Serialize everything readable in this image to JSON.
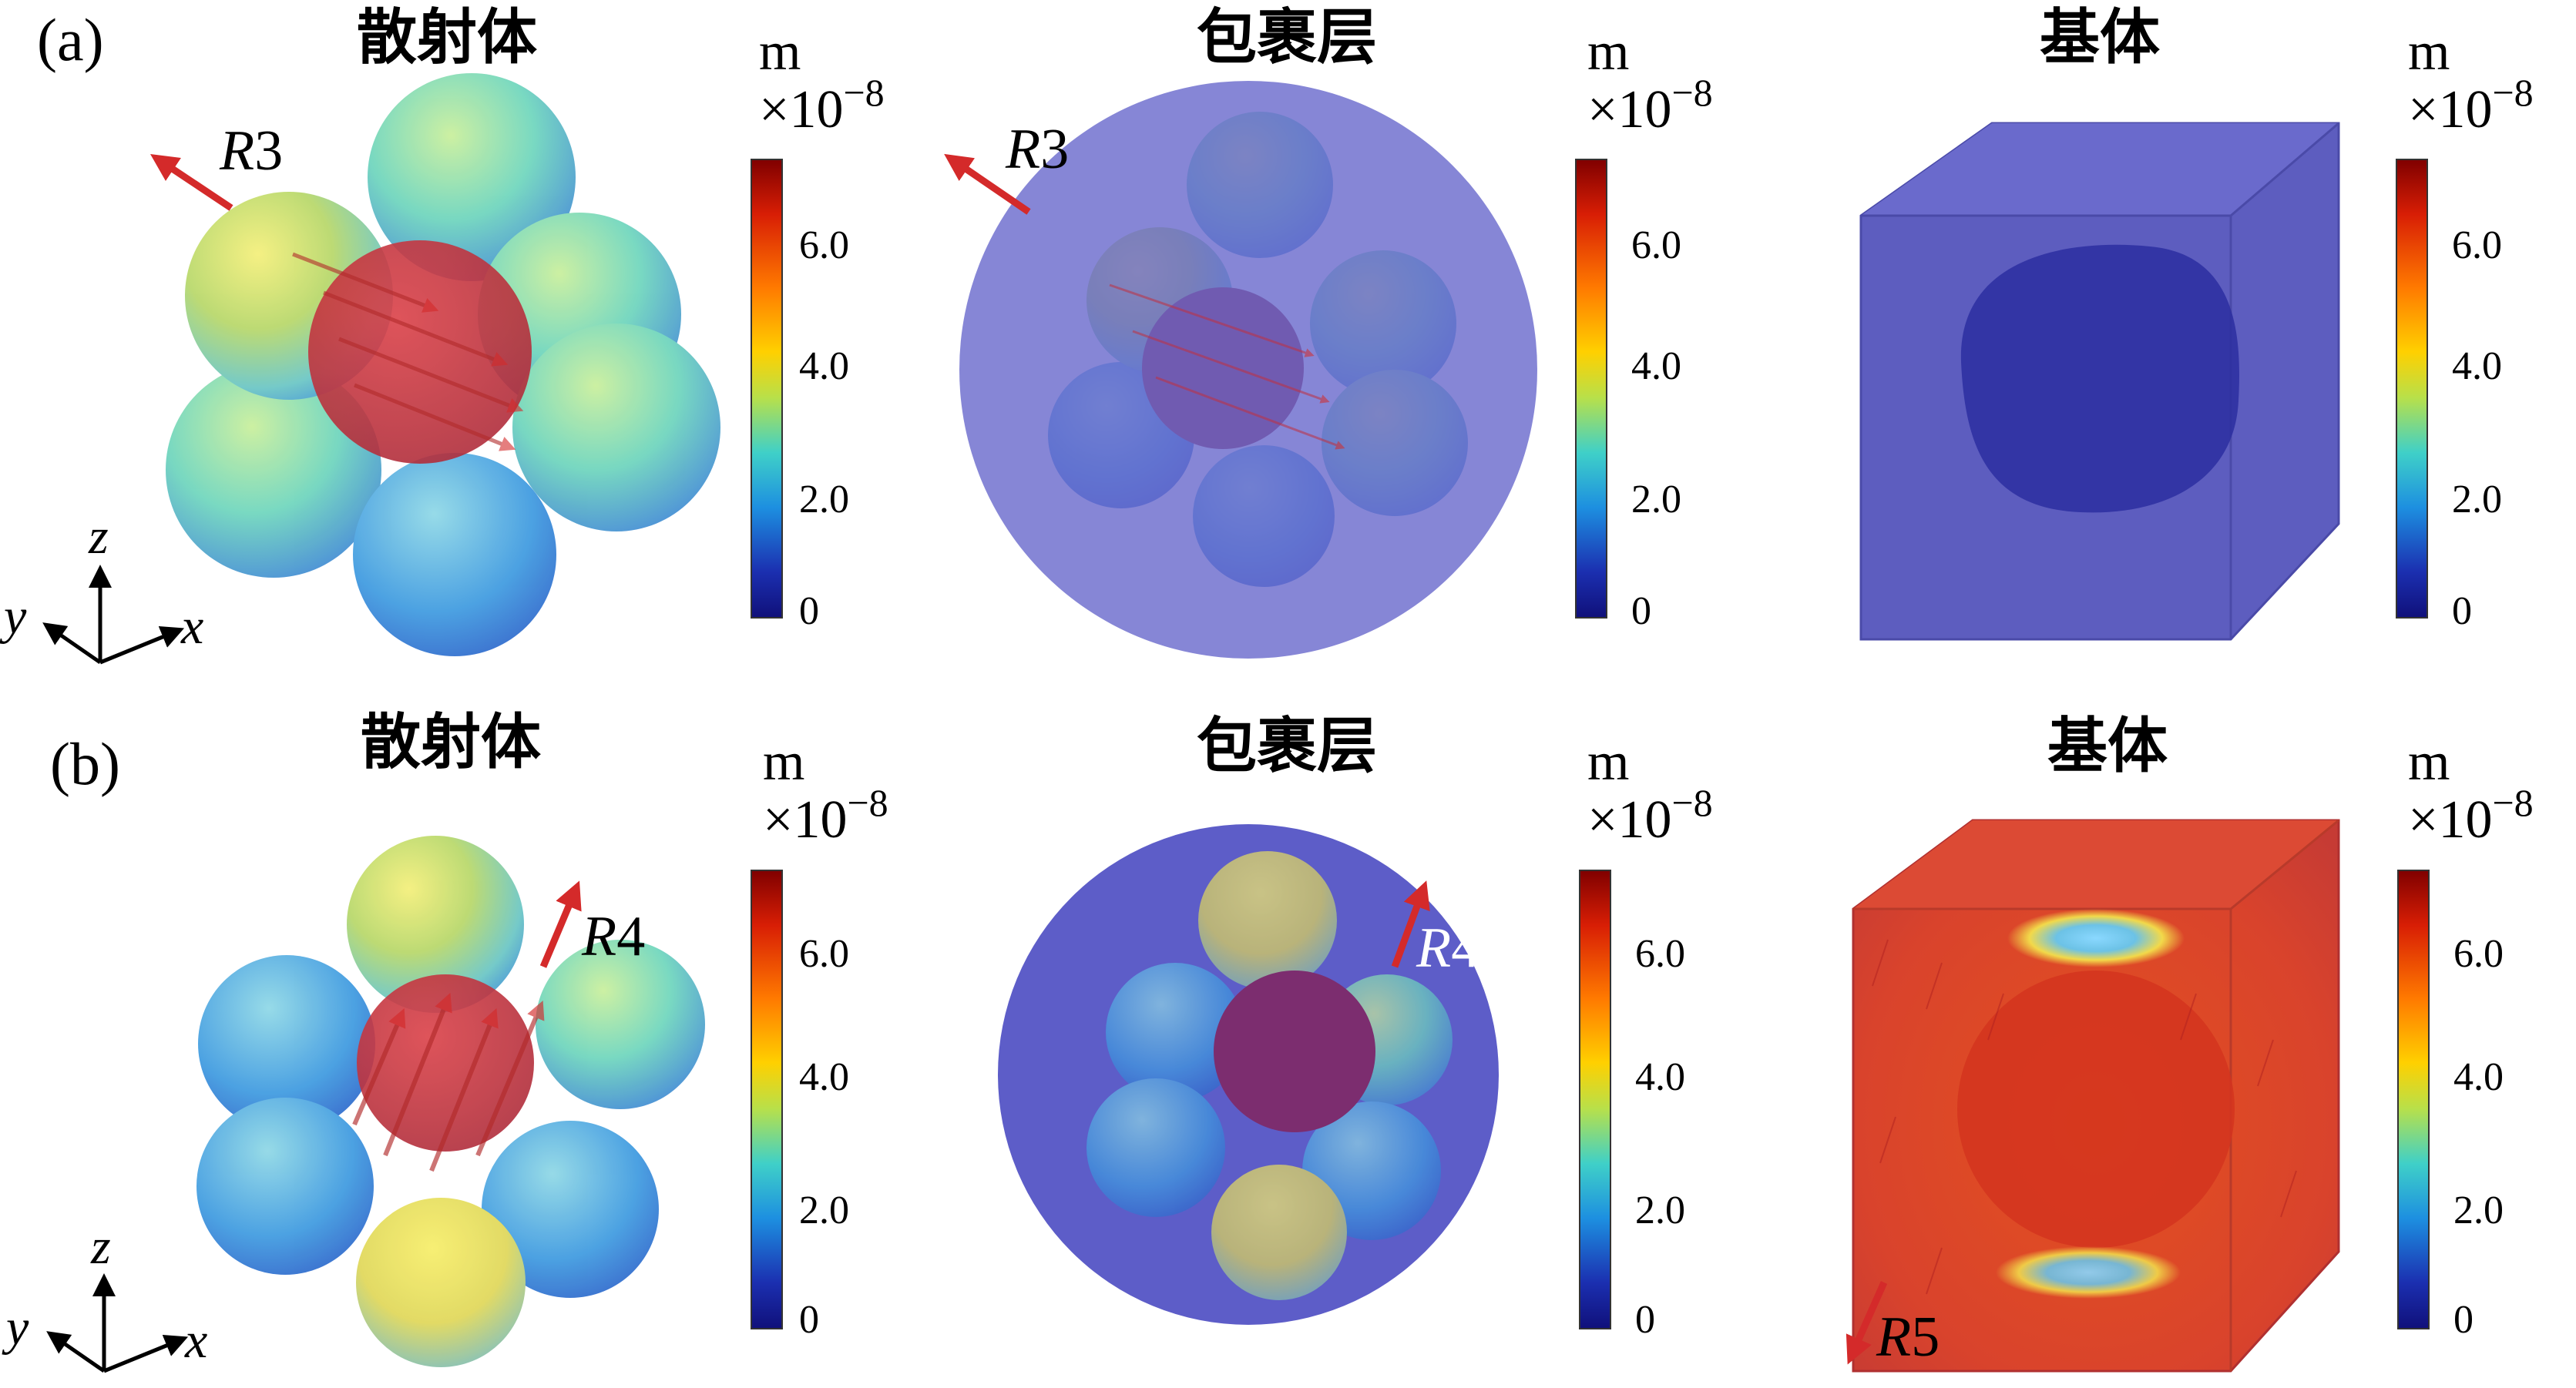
{
  "rows": [
    {
      "label": "(a)",
      "panels": [
        {
          "title": "散射体",
          "arrow_label": {
            "letter": "R",
            "num": "3"
          }
        },
        {
          "title": "包裹层",
          "arrow_label": {
            "letter": "R",
            "num": "3"
          }
        },
        {
          "title": "基体",
          "arrow_label": null
        }
      ]
    },
    {
      "label": "(b)",
      "panels": [
        {
          "title": "散射体",
          "arrow_label": {
            "letter": "R",
            "num": "4"
          }
        },
        {
          "title": "包裹层",
          "arrow_label": {
            "letter": "R",
            "num": "4"
          }
        },
        {
          "title": "基体",
          "arrow_label": {
            "letter": "R",
            "num": "5"
          }
        }
      ]
    }
  ],
  "colorbar": {
    "unit": "m",
    "scale_base": "×10",
    "scale_exp": "−8",
    "ticks": [
      "6.0",
      "4.0",
      "2.0",
      "0"
    ],
    "colormap": [
      "#7f0000",
      "#d81e05",
      "#ff7a00",
      "#ffd000",
      "#b8e04a",
      "#3fd0c8",
      "#1d8fe0",
      "#1b2fb0",
      "#10107a"
    ]
  },
  "axes": {
    "z": "z",
    "y": "y",
    "x": "x"
  },
  "colors": {
    "arrow": "#d42a2a",
    "wrap_layer": "#6c6bd0",
    "matrix_low": "#5d5dbf",
    "matrix_high": "#d9432c"
  }
}
